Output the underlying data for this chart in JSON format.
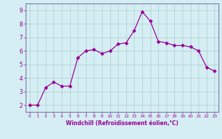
{
  "x": [
    0,
    1,
    2,
    3,
    4,
    5,
    6,
    7,
    8,
    9,
    10,
    11,
    12,
    13,
    14,
    15,
    16,
    17,
    18,
    19,
    20,
    21,
    22,
    23
  ],
  "y": [
    2.0,
    2.0,
    3.3,
    3.7,
    3.4,
    3.4,
    5.5,
    6.0,
    6.1,
    5.8,
    6.0,
    6.5,
    6.6,
    7.5,
    8.9,
    8.2,
    6.7,
    6.6,
    6.4,
    6.4,
    6.3,
    6.0,
    4.8,
    4.5
  ],
  "line_color": "#990099",
  "marker": "D",
  "marker_size": 2.5,
  "bg_color": "#d5eef3",
  "grid_color": "#aacccc",
  "xlabel": "Windchill (Refroidissement éolien,°C)",
  "xlabel_color": "#990099",
  "ylabel_ticks": [
    2,
    3,
    4,
    5,
    6,
    7,
    8,
    9
  ],
  "xtick_labels": [
    "0",
    "1",
    "2",
    "3",
    "4",
    "5",
    "6",
    "7",
    "8",
    "9",
    "10",
    "11",
    "12",
    "13",
    "14",
    "15",
    "16",
    "17",
    "18",
    "19",
    "20",
    "21",
    "22",
    "23"
  ],
  "ylim": [
    1.5,
    9.5
  ],
  "xlim": [
    -0.5,
    23.5
  ],
  "tick_color": "#990099",
  "spine_color": "#7777aa",
  "xlabel_fontsize": 5.5,
  "ytick_fontsize": 6.0,
  "xtick_fontsize": 4.5
}
